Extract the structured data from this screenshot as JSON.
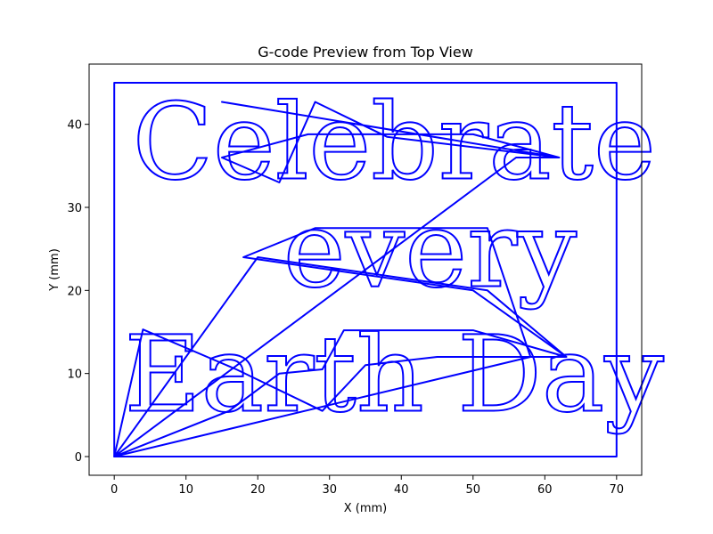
{
  "chart_data": {
    "type": "line",
    "title": "G-code Preview from Top View",
    "xlabel": "X (mm)",
    "ylabel": "Y (mm)",
    "xlim": [
      -3.5,
      73.5
    ],
    "ylim": [
      -2.25,
      47.25
    ],
    "xticks": [
      0,
      10,
      20,
      30,
      40,
      50,
      60,
      70
    ],
    "yticks": [
      0,
      10,
      20,
      30,
      40
    ],
    "color": "#0000ff",
    "series": [
      {
        "name": "border",
        "x": [
          0,
          0,
          70,
          70,
          0
        ],
        "y": [
          0,
          45,
          45,
          0,
          0
        ]
      },
      {
        "name": "travel",
        "x": [
          0,
          16,
          23,
          29,
          32,
          50,
          63,
          50,
          18,
          28,
          52,
          58,
          0,
          4,
          17,
          29,
          35,
          45,
          63,
          52,
          20,
          0,
          56,
          62,
          38,
          28,
          23,
          15,
          27,
          50,
          62,
          15
        ],
        "y": [
          0,
          5.5,
          10,
          10.5,
          15.2,
          15.2,
          12,
          20,
          24,
          27.5,
          27.5,
          12,
          0,
          15.3,
          10.5,
          5.5,
          11,
          12,
          12,
          20,
          24,
          0,
          36,
          36,
          38.5,
          42.7,
          33,
          36,
          38.8,
          38.8,
          36,
          42.7
        ]
      }
    ],
    "annotations": [
      {
        "text": "Celebrate",
        "x": 39,
        "y": 33.5
      },
      {
        "text": "every",
        "x": 44,
        "y": 20.5
      },
      {
        "text": "Earth Day",
        "x": 39,
        "y": 5.5
      }
    ]
  }
}
